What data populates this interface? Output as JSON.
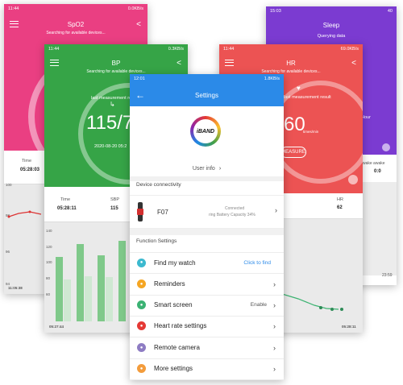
{
  "spo2": {
    "time": "11:44",
    "net": "0.0KB/s",
    "title": "SpO2",
    "subtitle": "Searching for available devices...",
    "time_label": "Time",
    "time_value": "05:28:03",
    "axis_top": "100",
    "axis_mid": "98",
    "axis_low": "96",
    "axis_bot": "94",
    "start_time": "11:05:38"
  },
  "bp": {
    "time": "11:44",
    "net": "0.3KB/s",
    "title": "BP",
    "subtitle": "Searching for available devices...",
    "last_label": "last measurement result",
    "big_value": "115/7",
    "timestamp": "2020-08-20 05:2",
    "time_label": "Time",
    "time_value": "05:28:11",
    "sbp_label": "SBP",
    "sbp_value": "115",
    "axis": [
      "140",
      "120",
      "100",
      "80",
      "60"
    ],
    "start_time": "05:27:44"
  },
  "sleep": {
    "time": "15:03",
    "battery": "40",
    "title": "Sleep",
    "subtitle": "Querying data",
    "hour": "Hour",
    "awake_label": "wake awake",
    "awake_value": "0:0",
    "end_time": "23:59"
  },
  "hr": {
    "time": "11:44",
    "net": "69.0KB/s",
    "title": "HR",
    "subtitle": "Searching for available devices...",
    "last_label": "last measurement result",
    "big_value": "60",
    "unit": "times/min",
    "measure": "MEASURE",
    "hr_label": "HR",
    "hr_value": "62",
    "end_time": "05:28:11"
  },
  "settings": {
    "time": "12:01",
    "net": "1.8KB/s",
    "title": "Settings",
    "back": "←",
    "logo": "iBAND",
    "user_info": "User info",
    "device_header": "Device connectivity",
    "device_name": "F07",
    "device_status": "Connected",
    "device_battery": "ring Battery Capacity 34%",
    "function_header": "Function Settings",
    "items": [
      {
        "label": "Find my watch",
        "right": "Click to find",
        "icon": "search-icon",
        "color": "#3cb9cf"
      },
      {
        "label": "Reminders",
        "right": "",
        "icon": "bell-icon",
        "color": "#f5a623"
      },
      {
        "label": "Smart screen",
        "right": "Enable",
        "icon": "screen-icon",
        "color": "#3bb273"
      },
      {
        "label": "Heart rate settings",
        "right": "",
        "icon": "heart-icon",
        "color": "#e53935"
      },
      {
        "label": "Remote camera",
        "right": "",
        "icon": "camera-icon",
        "color": "#8e7cc3"
      },
      {
        "label": "More settings",
        "right": "",
        "icon": "more-icon",
        "color": "#f39c3c"
      }
    ]
  }
}
